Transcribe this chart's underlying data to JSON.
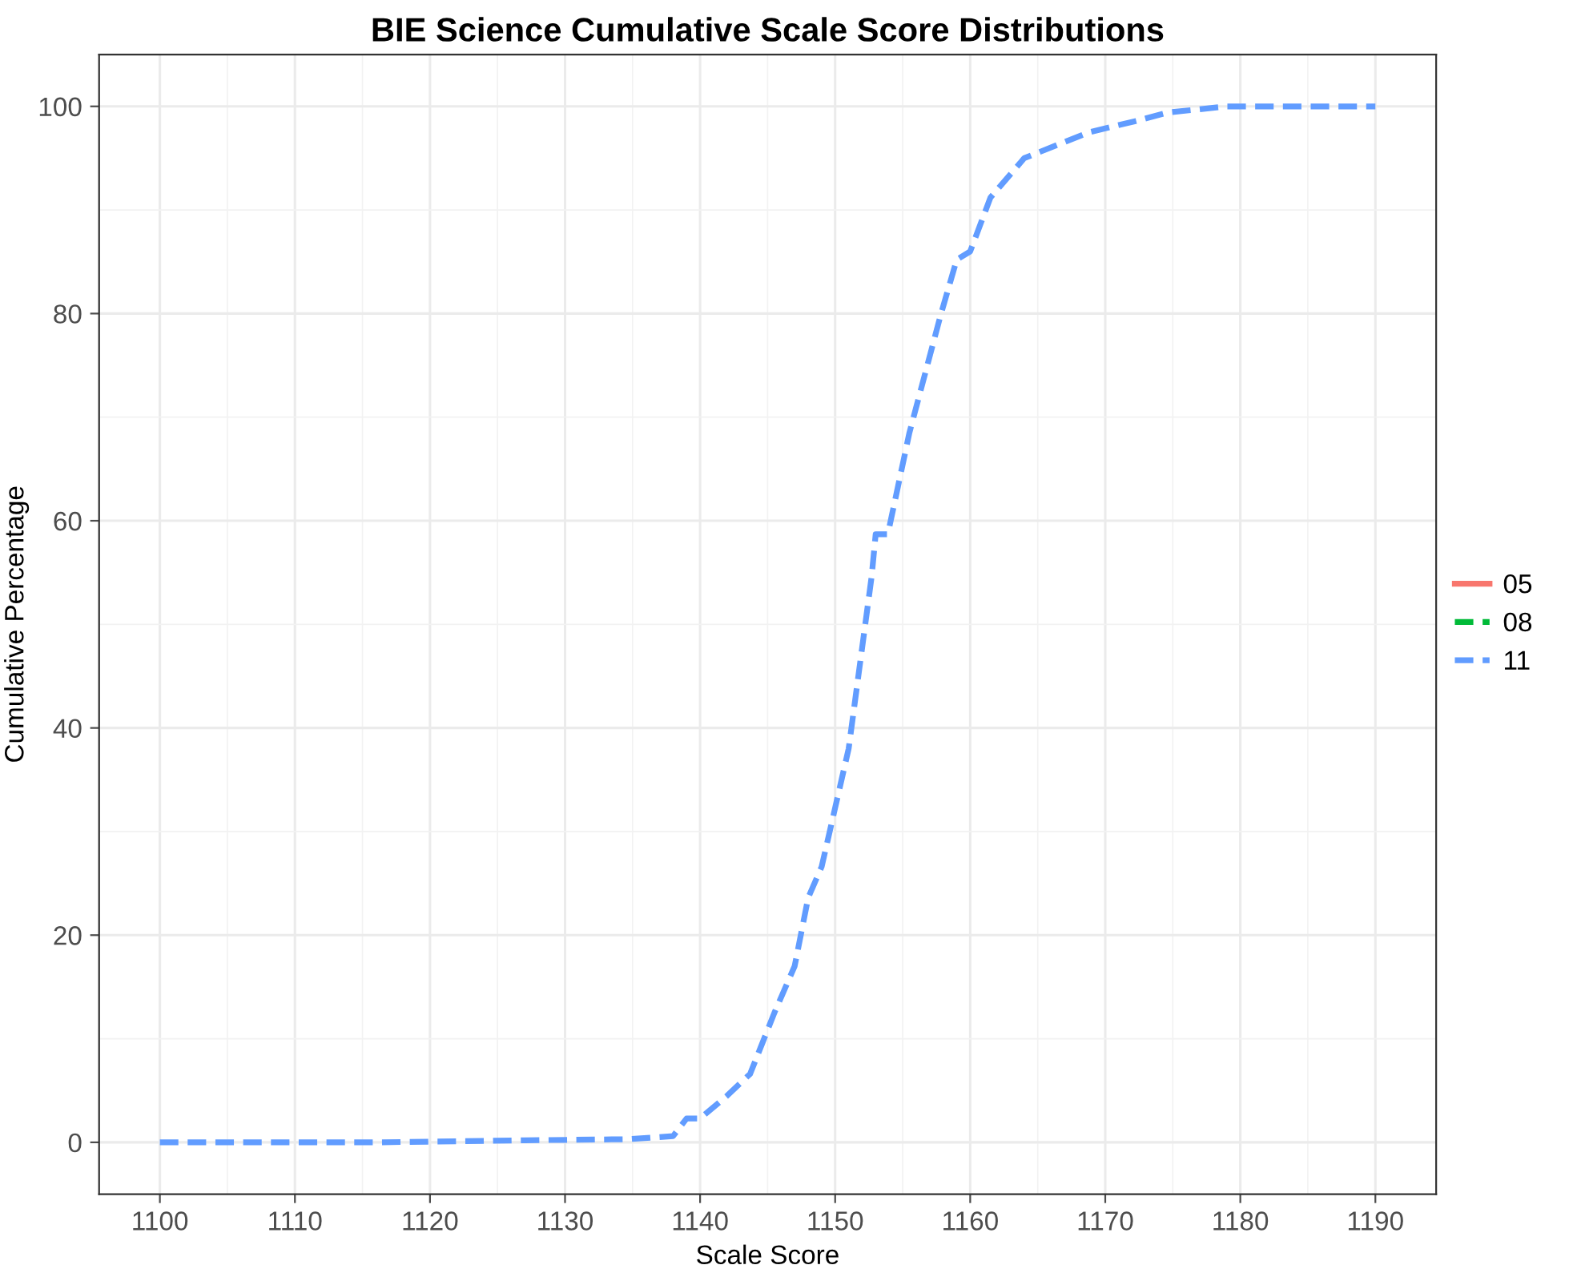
{
  "chart_data": {
    "type": "line",
    "title": "BIE Science Cumulative Scale Score Distributions",
    "xlabel": "Scale Score",
    "ylabel": "Cumulative Percentage",
    "xlim": [
      1095.5,
      1194.5
    ],
    "xticks": [
      1100,
      1110,
      1120,
      1130,
      1140,
      1150,
      1160,
      1170,
      1180,
      1190
    ],
    "ylim": [
      -5,
      105
    ],
    "yticks": [
      0,
      20,
      40,
      60,
      80,
      100
    ],
    "grid": true,
    "legend": "right",
    "series": [
      {
        "name": "05",
        "color": "#f8766d",
        "line_style": "solid"
      },
      {
        "name": "08",
        "color": "#00ba38",
        "line_style": "dashed"
      },
      {
        "name": "11",
        "color": "#619cff",
        "line_style": "dashed",
        "x": [
          1100,
          1116,
          1122,
          1127,
          1134.6,
          1138,
          1139,
          1140,
          1142,
          1143.7,
          1145.5,
          1147,
          1148,
          1149,
          1151,
          1152.7,
          1153,
          1153.9,
          1155.5,
          1157.8,
          1159,
          1160,
          1161.5,
          1164,
          1168.8,
          1172.3,
          1174.6,
          1179,
          1190
        ],
        "values": [
          0,
          0,
          0.1,
          0.2,
          0.3,
          0.6,
          2.3,
          2.3,
          4.5,
          6.6,
          12.5,
          17,
          23.6,
          26.6,
          38,
          54.6,
          58.7,
          58.7,
          68.5,
          79.8,
          85.2,
          86,
          91.2,
          95,
          97.5,
          98.6,
          99.4,
          100,
          100
        ]
      }
    ]
  }
}
